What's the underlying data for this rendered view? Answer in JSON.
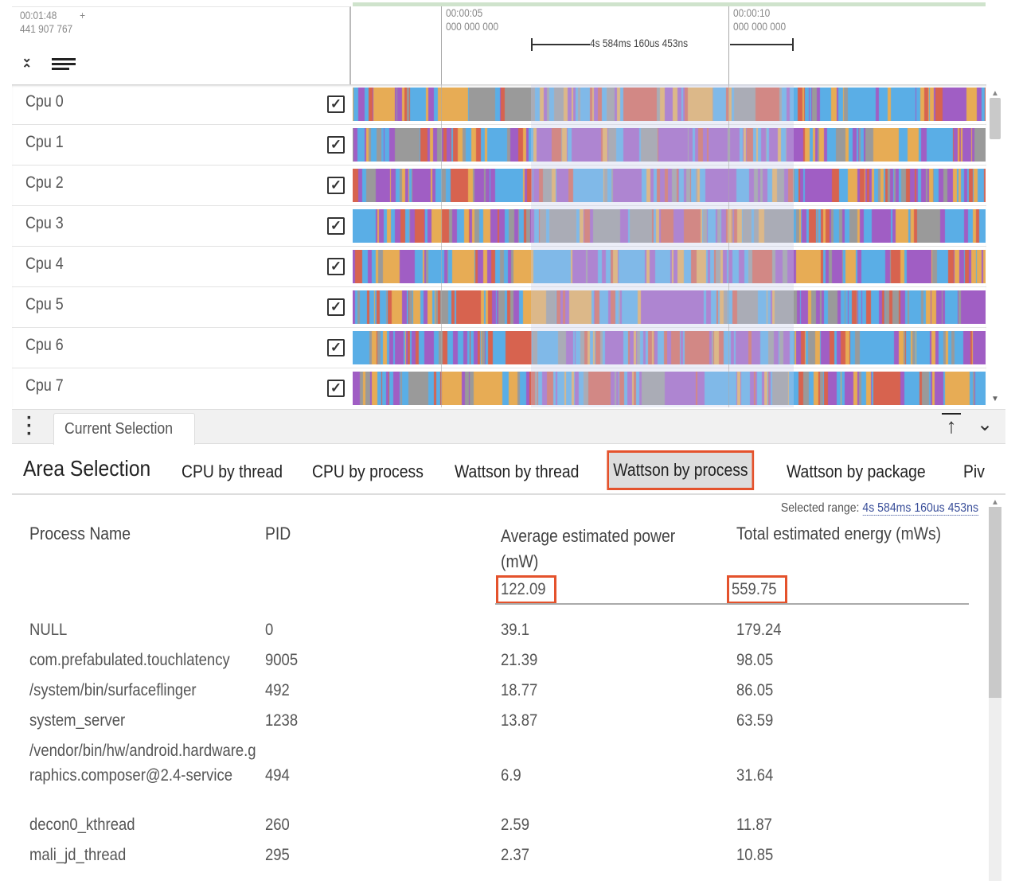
{
  "timeline": {
    "offset_time": "00:01:48",
    "offset_ns": "441 907 767",
    "plus": "+",
    "ticks": [
      {
        "time": "00:00:05",
        "ns": "000 000 000"
      },
      {
        "time": "00:00:10",
        "ns": "000 000 000"
      }
    ],
    "selection_duration": "4s 584ms 160us 453ns"
  },
  "tracks": [
    {
      "label": "Cpu 0",
      "checked": true
    },
    {
      "label": "Cpu 1",
      "checked": true
    },
    {
      "label": "Cpu 2",
      "checked": true
    },
    {
      "label": "Cpu 3",
      "checked": true
    },
    {
      "label": "Cpu 4",
      "checked": true
    },
    {
      "label": "Cpu 5",
      "checked": true
    },
    {
      "label": "Cpu 6",
      "checked": true
    },
    {
      "label": "Cpu 7",
      "checked": true
    }
  ],
  "slice_colors": {
    "purple": "#a05ec4",
    "blue": "#5aaee6",
    "red": "#d7634f",
    "orange": "#e7ac55",
    "grey": "#9a9a9a"
  },
  "details": {
    "tab": "Current Selection",
    "title": "Area Selection",
    "subtabs": [
      "CPU by thread",
      "CPU by process",
      "Wattson by thread",
      "Wattson by process",
      "Wattson by package",
      "Piv"
    ],
    "active_subtab": "Wattson by process",
    "selected_range_label": "Selected range:",
    "selected_range_value": "4s 584ms 160us 453ns",
    "columns": [
      "Process Name",
      "PID",
      "Average estimated power (mW)",
      "Total estimated energy (mWs)"
    ],
    "totals": {
      "power": "122.09",
      "energy": "559.75"
    },
    "rows": [
      {
        "name": "NULL",
        "pid": "0",
        "power": "39.1",
        "energy": "179.24"
      },
      {
        "name": "com.prefabulated.touchlatency",
        "pid": "9005",
        "power": "21.39",
        "energy": "98.05"
      },
      {
        "name": "/system/bin/surfaceflinger",
        "pid": "492",
        "power": "18.77",
        "energy": "86.05"
      },
      {
        "name": "system_server",
        "pid": "1238",
        "power": "13.87",
        "energy": "63.59"
      },
      {
        "name": "/vendor/bin/hw/android.hardware.graphics.composer@2.4-service",
        "pid": "494",
        "power": "6.9",
        "energy": "31.64"
      },
      {
        "name": "decon0_kthread",
        "pid": "260",
        "power": "2.59",
        "energy": "11.87"
      },
      {
        "name": "mali_jd_thread",
        "pid": "295",
        "power": "2.37",
        "energy": "10.85"
      }
    ],
    "accent": "#e4522c"
  }
}
